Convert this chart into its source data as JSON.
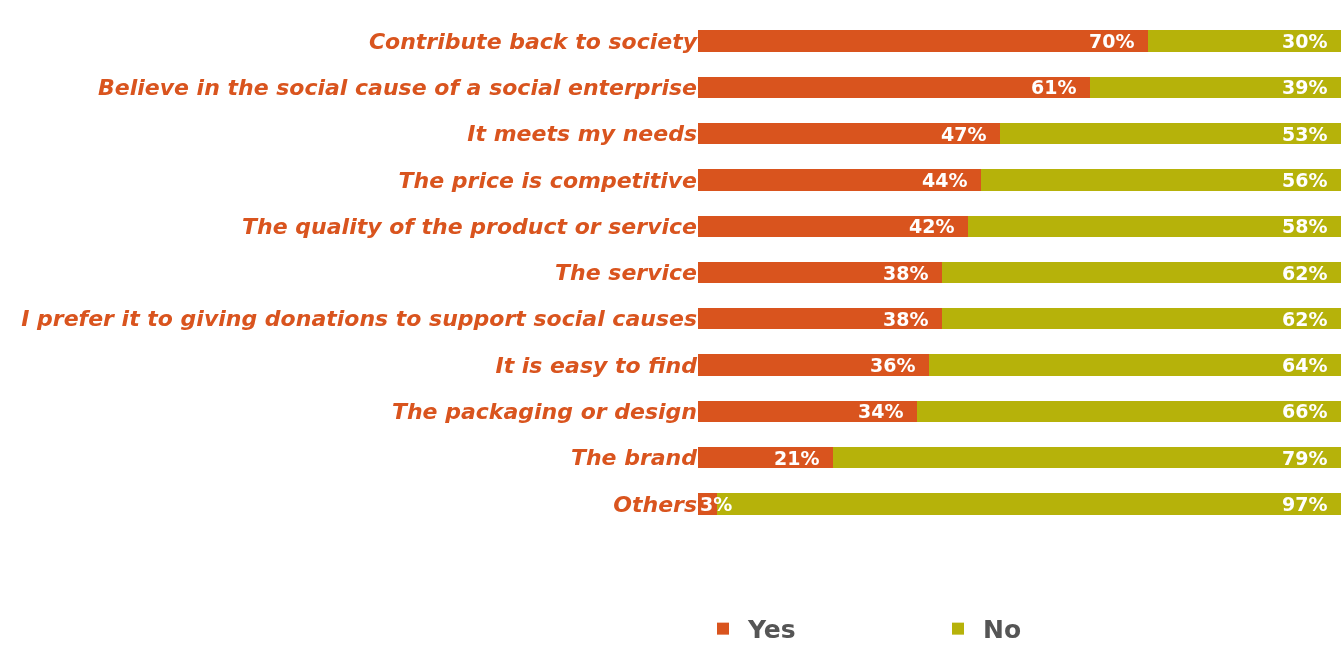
{
  "chart_data": {
    "type": "bar",
    "orientation": "horizontal",
    "stacked": true,
    "legend": "bottom",
    "grid": false,
    "tick_labels": "y",
    "xlim": [
      0,
      100
    ],
    "categories": [
      "Contribute back to society",
      "Believe in the social cause of a social enterprise",
      "It meets my needs",
      "The price is competitive",
      "The quality of the product or service",
      "The service",
      "I prefer it to giving donations to support social causes",
      "It is easy to find",
      "The packaging or design",
      "The brand",
      "Others"
    ],
    "series": [
      {
        "name": "Yes",
        "color": "#d9541e",
        "values": [
          70,
          61,
          47,
          44,
          42,
          38,
          38,
          36,
          34,
          21,
          3
        ],
        "value_labels": [
          "70%",
          "61%",
          "47%",
          "44%",
          "42%",
          "38%",
          "38%",
          "36%",
          "34%",
          "21%",
          "3%"
        ]
      },
      {
        "name": "No",
        "color": "#b6b20a",
        "values": [
          30,
          39,
          53,
          56,
          58,
          62,
          62,
          64,
          66,
          79,
          97
        ],
        "value_labels": [
          "30%",
          "39%",
          "53%",
          "56%",
          "58%",
          "62%",
          "62%",
          "64%",
          "66%",
          "79%",
          "97%"
        ]
      }
    ]
  }
}
